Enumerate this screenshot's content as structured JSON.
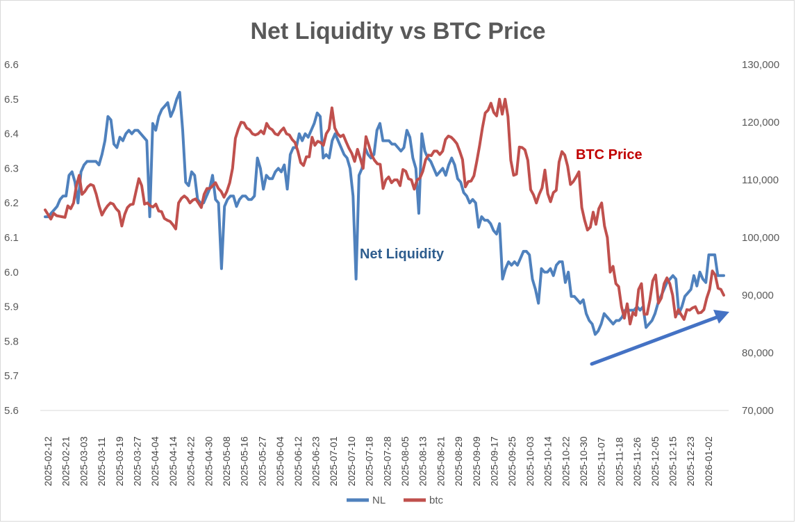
{
  "chart_data": {
    "type": "line",
    "title": "Net Liquidity vs BTC Price",
    "left_axis": {
      "ylim": [
        5.6,
        6.6
      ],
      "ticks": [
        "5.6",
        "5.7",
        "5.8",
        "5.9",
        "6.0",
        "6.1",
        "6.2",
        "6.3",
        "6.4",
        "6.5",
        "6.6"
      ]
    },
    "right_axis": {
      "ylim": [
        70000,
        130000
      ],
      "ticks": [
        "70,000",
        "80,000",
        "90,000",
        "100,000",
        "110,000",
        "120,000",
        "130,000"
      ]
    },
    "x_tick_labels": [
      "2025-02-12",
      "2025-02-21",
      "2025-03-03",
      "2025-03-11",
      "2025-03-19",
      "2025-03-27",
      "2025-04-04",
      "2025-04-14",
      "2025-04-22",
      "2025-04-30",
      "2025-05-08",
      "2025-05-16",
      "2025-05-27",
      "2025-06-04",
      "2025-06-12",
      "2025-06-23",
      "2025-07-01",
      "2025-07-10",
      "2025-07-18",
      "2025-07-28",
      "2025-08-05",
      "2025-08-13",
      "2025-08-21",
      "2025-08-29",
      "2025-09-09",
      "2025-09-17",
      "2025-09-25",
      "2025-10-03",
      "2025-10-14",
      "2025-10-22",
      "2025-10-30",
      "2025-11-07",
      "2025-11-18",
      "2025-11-26",
      "2025-12-05",
      "2025-12-15",
      "2025-12-23",
      "2026-01-02"
    ],
    "series": [
      {
        "name": "NL",
        "axis": "left",
        "color": "#4f81bd",
        "values": [
          6.16,
          6.16,
          6.17,
          6.18,
          6.19,
          6.21,
          6.22,
          6.22,
          6.28,
          6.29,
          6.26,
          6.2,
          6.29,
          6.31,
          6.32,
          6.32,
          6.32,
          6.32,
          6.31,
          6.34,
          6.38,
          6.45,
          6.44,
          6.37,
          6.36,
          6.39,
          6.38,
          6.4,
          6.41,
          6.4,
          6.41,
          6.41,
          6.4,
          6.39,
          6.38,
          6.16,
          6.43,
          6.41,
          6.45,
          6.47,
          6.48,
          6.49,
          6.45,
          6.47,
          6.5,
          6.52,
          6.41,
          6.26,
          6.25,
          6.29,
          6.28,
          6.21,
          6.2,
          6.2,
          6.22,
          6.24,
          6.28,
          6.21,
          6.2,
          6.01,
          6.19,
          6.21,
          6.22,
          6.22,
          6.19,
          6.21,
          6.22,
          6.22,
          6.21,
          6.21,
          6.22,
          6.33,
          6.3,
          6.24,
          6.28,
          6.27,
          6.27,
          6.29,
          6.3,
          6.29,
          6.31,
          6.24,
          6.34,
          6.36,
          6.36,
          6.4,
          6.38,
          6.4,
          6.39,
          6.41,
          6.43,
          6.46,
          6.45,
          6.33,
          6.34,
          6.33,
          6.38,
          6.4,
          6.38,
          6.36,
          6.34,
          6.33,
          6.3,
          6.22,
          5.98,
          6.28,
          6.3,
          6.36,
          6.34,
          6.33,
          6.34,
          6.41,
          6.43,
          6.38,
          6.38,
          6.38,
          6.37,
          6.37,
          6.36,
          6.35,
          6.36,
          6.41,
          6.39,
          6.33,
          6.3,
          6.17,
          6.4,
          6.35,
          6.33,
          6.32,
          6.3,
          6.28,
          6.29,
          6.3,
          6.28,
          6.31,
          6.33,
          6.31,
          6.27,
          6.26,
          6.23,
          6.22,
          6.2,
          6.21,
          6.2,
          6.13,
          6.16,
          6.15,
          6.15,
          6.14,
          6.12,
          6.11,
          6.14,
          5.98,
          6.01,
          6.03,
          6.02,
          6.03,
          6.02,
          6.04,
          6.06,
          6.06,
          6.05,
          5.98,
          5.95,
          5.91,
          6.01,
          6.0,
          6.0,
          6.01,
          5.99,
          6.02,
          6.03,
          6.03,
          5.97,
          6.0,
          5.93,
          5.93,
          5.92,
          5.91,
          5.92,
          5.88,
          5.86,
          5.85,
          5.82,
          5.83,
          5.85,
          5.88,
          5.87,
          5.86,
          5.85,
          5.86,
          5.86,
          5.87,
          5.89,
          5.89,
          5.89,
          5.89,
          5.9,
          5.89,
          5.9,
          5.84,
          5.85,
          5.86,
          5.88,
          5.91,
          5.93,
          5.95,
          5.97,
          5.98,
          5.99,
          5.98,
          5.88,
          5.9,
          5.93,
          5.94,
          5.95,
          5.99,
          5.96,
          6.0,
          5.98,
          5.97,
          6.05,
          6.05,
          6.05,
          5.99,
          5.99,
          5.99
        ]
      },
      {
        "name": "btc",
        "axis": "right",
        "color": "#c0504d",
        "values": [
          104800,
          104000,
          103200,
          104200,
          103800,
          103700,
          103600,
          103500,
          105500,
          105000,
          106000,
          109000,
          110800,
          107500,
          108000,
          108800,
          109200,
          109000,
          107500,
          105500,
          103900,
          104800,
          105500,
          106000,
          105800,
          105000,
          104500,
          102000,
          104000,
          105200,
          105700,
          105800,
          108000,
          110200,
          109000,
          105800,
          106000,
          105500,
          105300,
          105800,
          104600,
          104500,
          103300,
          103000,
          102800,
          102200,
          101500,
          106000,
          106800,
          107200,
          106800,
          106000,
          106500,
          106700,
          106000,
          105200,
          107500,
          108500,
          108500,
          109000,
          109500,
          108500,
          108000,
          107000,
          108000,
          109500,
          112000,
          117200,
          118800,
          120000,
          119900,
          119000,
          118700,
          118000,
          117800,
          118000,
          118500,
          118000,
          119800,
          119000,
          118700,
          118000,
          117800,
          118500,
          119000,
          118000,
          117800,
          117000,
          116500,
          115000,
          113000,
          112500,
          114000,
          114000,
          117400,
          116000,
          116700,
          116500,
          116000,
          118000,
          118800,
          122500,
          119000,
          118000,
          117500,
          117800,
          116600,
          115500,
          114600,
          113200,
          115300,
          113700,
          112000,
          117500,
          116000,
          114300,
          113400,
          112800,
          112700,
          108500,
          110000,
          110500,
          109500,
          110000,
          110000,
          109000,
          111800,
          111500,
          110200,
          110000,
          108400,
          110000,
          110300,
          111500,
          113500,
          114300,
          114200,
          115000,
          115000,
          114400,
          115000,
          117000,
          117600,
          117400,
          116900,
          116300,
          115000,
          113500,
          108800,
          109700,
          109800,
          110700,
          113200,
          115900,
          119000,
          121600,
          122100,
          123300,
          121700,
          121100,
          124000,
          121400,
          124000,
          121000,
          113400,
          110800,
          111000,
          115700,
          115600,
          115200,
          113400,
          108300,
          107400,
          106000,
          107500,
          108600,
          111700,
          107600,
          106200,
          107800,
          108200,
          113100,
          114900,
          114300,
          112400,
          109200,
          109700,
          110500,
          111400,
          105200,
          103000,
          101300,
          101800,
          104400,
          102300,
          105000,
          106000,
          102000,
          100000,
          94000,
          95000,
          92000,
          91500,
          88000,
          86000,
          88500,
          85000,
          87000,
          86500,
          91000,
          92000,
          86700,
          86700,
          89200,
          92500,
          93500,
          88600,
          89500,
          92000,
          93000,
          92000,
          90000,
          86200,
          87500,
          86600,
          85800,
          87500,
          87400,
          87800,
          88000,
          86900,
          87000,
          87500,
          89500,
          91000,
          94200,
          93500,
          91200,
          91000,
          90000
        ]
      }
    ],
    "legend": {
      "position": "bottom-center",
      "entries": [
        "NL",
        "btc"
      ]
    },
    "annotations": [
      {
        "text": "BTC Price",
        "color": "#c00000"
      },
      {
        "text": "Net Liquidity",
        "color": "#2e5d8e"
      }
    ]
  }
}
